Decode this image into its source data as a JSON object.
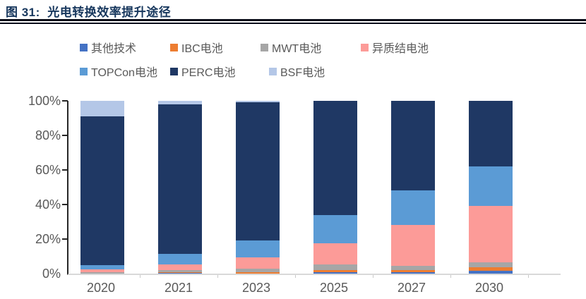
{
  "header": {
    "title": "图 31:  光电转换效率提升途径"
  },
  "chart_data": {
    "type": "bar",
    "stacked": true,
    "unit": "percent",
    "title": "光电转换效率提升途径",
    "categories": [
      "2020",
      "2021",
      "2023",
      "2025",
      "2027",
      "2030"
    ],
    "series": [
      {
        "name": "其他技术",
        "color": "#4472C4",
        "values": [
          0,
          0.5,
          0,
          1,
          1,
          1.5
        ]
      },
      {
        "name": "IBC电池",
        "color": "#ED7D31",
        "values": [
          0,
          0.5,
          1,
          1,
          1,
          2
        ]
      },
      {
        "name": "MWT电池",
        "color": "#A6A6A6",
        "values": [
          1,
          1,
          2,
          3.5,
          2.5,
          3
        ]
      },
      {
        "name": "异质结电池",
        "color": "#FC9B98",
        "values": [
          1.5,
          3.5,
          6.5,
          12,
          23.5,
          32.5
        ]
      },
      {
        "name": "TOPCon电池",
        "color": "#5B9BD5",
        "values": [
          2.3,
          6,
          9.5,
          16.5,
          20,
          23
        ]
      },
      {
        "name": "PERC电池",
        "color": "#1F3864",
        "values": [
          86.4,
          86.5,
          80,
          66,
          52,
          38
        ]
      },
      {
        "name": "BSF电池",
        "color": "#B4C7E7",
        "values": [
          8.8,
          2,
          1,
          0,
          0,
          0
        ]
      }
    ],
    "xlabel": "",
    "ylabel": "",
    "ylim": [
      0,
      100
    ],
    "yticks": [
      {
        "label": "0%",
        "value": 0
      },
      {
        "label": "20%",
        "value": 20
      },
      {
        "label": "40%",
        "value": 40
      },
      {
        "label": "60%",
        "value": 60
      },
      {
        "label": "80%",
        "value": 80
      },
      {
        "label": "100%",
        "value": 100
      }
    ],
    "legend_position": "top",
    "grid": false,
    "colors": {
      "title_text": "#17375D",
      "axis_line": "#262626",
      "baseline": "#D9D9D9",
      "tick_text": "#595959"
    }
  }
}
